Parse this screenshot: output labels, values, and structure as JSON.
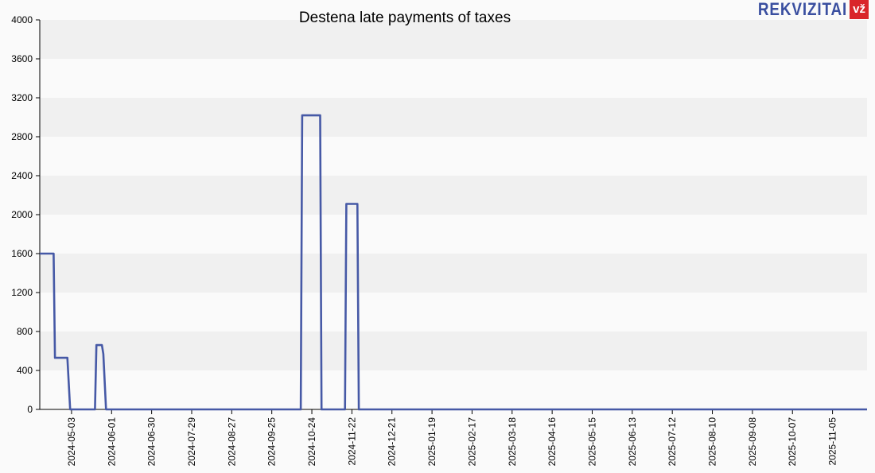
{
  "chart_data": {
    "type": "line",
    "title": "Destena late payments of taxes",
    "xlabel": "",
    "ylabel": "",
    "ylim": [
      0,
      4000
    ],
    "yticks": [
      0,
      400,
      800,
      1200,
      1600,
      2000,
      2400,
      2800,
      3200,
      3600,
      4000
    ],
    "xlim": [
      "2024-04-10",
      "2025-11-30"
    ],
    "xticks": [
      "2024-05-03",
      "2024-06-01",
      "2024-06-30",
      "2024-07-29",
      "2024-08-27",
      "2024-09-25",
      "2024-10-24",
      "2024-11-22",
      "2024-12-21",
      "2025-01-19",
      "2025-02-17",
      "2025-03-18",
      "2025-04-16",
      "2025-05-15",
      "2025-06-13",
      "2025-07-12",
      "2025-08-10",
      "2025-09-08",
      "2025-10-07",
      "2025-11-05"
    ],
    "grid": "horizontal bands",
    "color": "#4659a6",
    "series": [
      {
        "points": [
          [
            "2024-04-10",
            1600
          ],
          [
            "2024-04-20",
            1600
          ],
          [
            "2024-04-21",
            530
          ],
          [
            "2024-04-30",
            530
          ],
          [
            "2024-05-02",
            0
          ],
          [
            "2024-05-20",
            0
          ],
          [
            "2024-05-21",
            660
          ],
          [
            "2024-05-25",
            660
          ],
          [
            "2024-05-26",
            570
          ],
          [
            "2024-05-28",
            0
          ],
          [
            "2024-10-16",
            0
          ],
          [
            "2024-10-17",
            3020
          ],
          [
            "2024-10-30",
            3020
          ],
          [
            "2024-10-31",
            0
          ],
          [
            "2024-11-17",
            0
          ],
          [
            "2024-11-18",
            2110
          ],
          [
            "2024-11-26",
            2110
          ],
          [
            "2024-11-27",
            0
          ],
          [
            "2025-11-30",
            0
          ]
        ]
      }
    ]
  },
  "brand": {
    "name": "REKVIZITAI",
    "badge": "vž"
  }
}
